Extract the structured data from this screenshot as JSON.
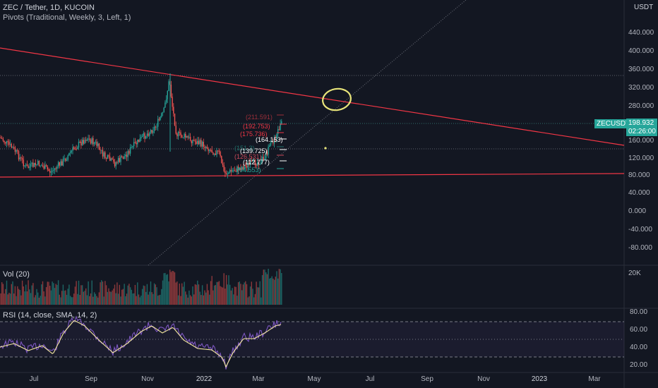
{
  "symbol_title": "ZEC / Tether, 1D, KUCOIN",
  "indicator_title": "Pivots (Traditional, Weekly, 3, Left, 1)",
  "currency": "USDT",
  "price_axis": [
    "440.000",
    "400.000",
    "360.000",
    "320.000",
    "280.000",
    "240.000",
    "160.000",
    "120.000",
    "80.000",
    "40.000",
    "0.000",
    "-40.000",
    "-80.000"
  ],
  "ticker_badge": "ZECUSDT",
  "price_badge": "198.932",
  "countdown_badge": "02:26:00",
  "volume_title": "Vol (20)",
  "volume_axis": "20K",
  "rsi_title": "RSI (14, close, SMA, 14, 2)",
  "rsi_axis": [
    "80.00",
    "60.00",
    "40.00",
    "20.00"
  ],
  "time_axis": [
    "Jul",
    "Sep",
    "Nov",
    "2022",
    "Mar",
    "May",
    "Jul",
    "Sep",
    "Nov",
    "2023",
    "Mar"
  ],
  "pivot_labels": [
    "(211.591)",
    "(192.753)",
    "(175.736)",
    "(164.153)",
    "(151.3)",
    "(139.725)",
    "(126.531)",
    "(112.777)",
    "(94.553)"
  ],
  "colors": {
    "background": "#131722",
    "up": "#26a69a",
    "down": "#ef5350",
    "trendline": "#f23645",
    "rsi_line": "#7e57c2",
    "rsi_ma": "#f5e9a0",
    "circle": "#e8e57a"
  }
}
